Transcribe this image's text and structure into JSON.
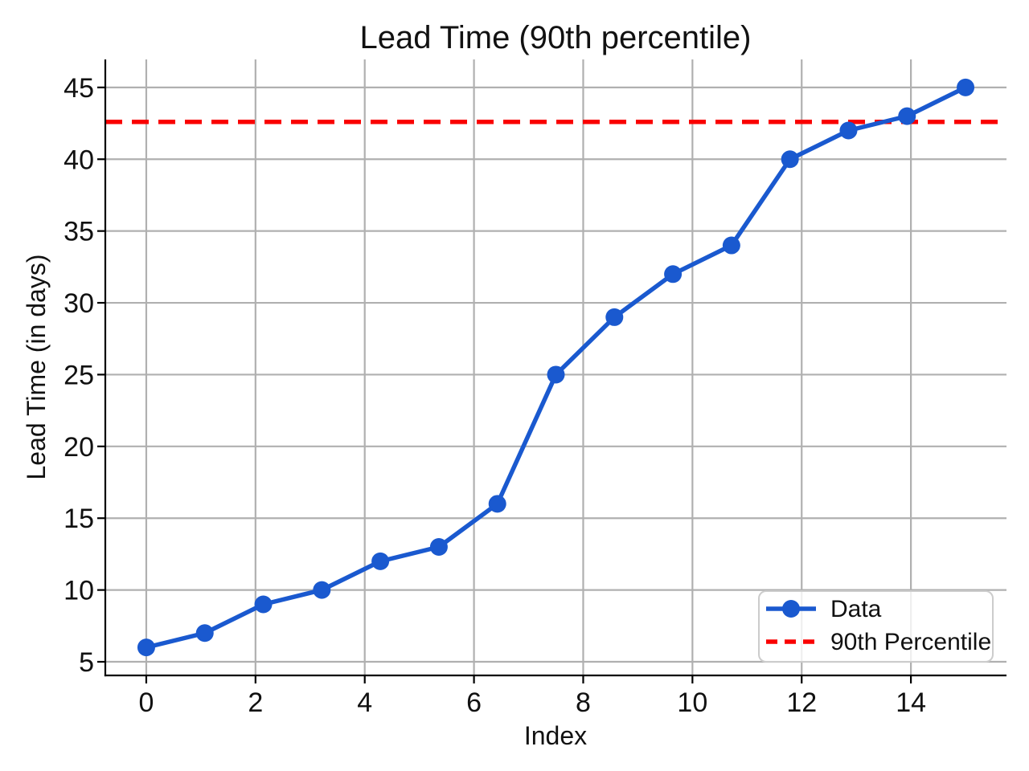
{
  "chart_data": {
    "type": "line",
    "title": "Lead Time (90th percentile)",
    "xlabel": "Index",
    "ylabel": "Lead Time (in days)",
    "x": [
      0,
      1.0714,
      2.1429,
      3.2143,
      4.2857,
      5.3571,
      6.4286,
      7.5,
      8.5714,
      9.6429,
      10.7143,
      11.7857,
      12.8571,
      13.9286,
      15
    ],
    "y": [
      6,
      7,
      9,
      10,
      12,
      13,
      16,
      25,
      29,
      32,
      34,
      40,
      42,
      43,
      45
    ],
    "series": [
      {
        "name": "Data",
        "marker": "circle",
        "line_style": "solid"
      },
      {
        "name": "90th Percentile",
        "line_style": "dashed",
        "value": 42.6
      }
    ],
    "percentile_value": 42.6,
    "xlim": [
      -0.75,
      15.75
    ],
    "ylim": [
      4.05,
      46.95
    ],
    "xticks": [
      0,
      2,
      4,
      6,
      8,
      10,
      12,
      14
    ],
    "yticks": [
      5,
      10,
      15,
      20,
      25,
      30,
      35,
      40,
      45
    ],
    "grid": true,
    "legend": {
      "position": "lower right",
      "entries": [
        {
          "label": "Data"
        },
        {
          "label": "90th Percentile"
        }
      ]
    },
    "colors": {
      "data_series": "#1a59cf",
      "percentile": "#fa0000",
      "grid": "#b0b0b0",
      "axis": "#000000",
      "legend_border": "#cccccc"
    }
  }
}
